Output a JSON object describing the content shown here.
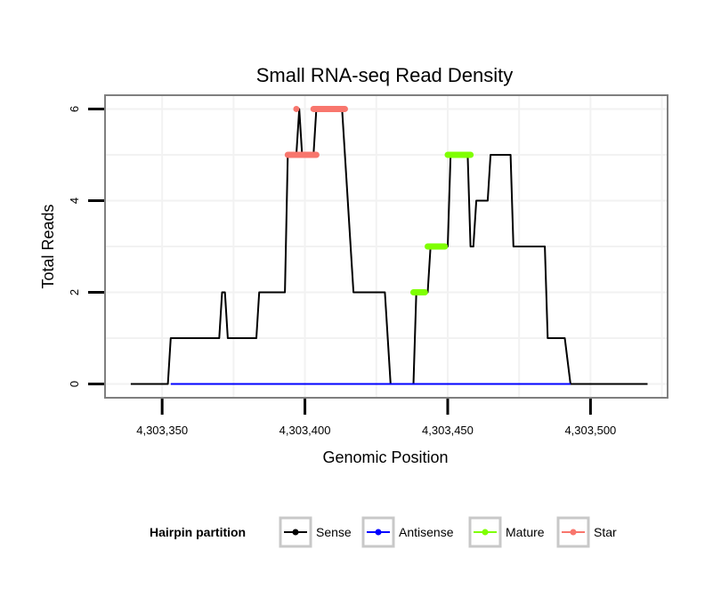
{
  "chart_data": {
    "type": "line",
    "title": "Small RNA-seq Read Density",
    "xlabel": "Genomic Position",
    "ylabel": "Total Reads",
    "xlim": [
      4303330,
      4303527
    ],
    "ylim": [
      -0.3,
      6.3
    ],
    "x_ticks": [
      {
        "value": 4303350,
        "label": "4,303,350"
      },
      {
        "value": 4303400,
        "label": "4,303,400"
      },
      {
        "value": 4303450,
        "label": "4,303,450"
      },
      {
        "value": 4303500,
        "label": "4,303,500"
      }
    ],
    "y_ticks": [
      {
        "value": 0,
        "label": "0"
      },
      {
        "value": 2,
        "label": "2"
      },
      {
        "value": 4,
        "label": "4"
      },
      {
        "value": 6,
        "label": "6"
      }
    ],
    "legend_title": "Hairpin partition",
    "legend_position": "bottom",
    "series": [
      {
        "name": "Sense",
        "color": "#000000",
        "style": "line",
        "x": [
          4303339,
          4303352,
          4303353,
          4303370,
          4303371,
          4303372,
          4303373,
          4303383,
          4303384,
          4303393,
          4303394,
          4303397,
          4303398,
          4303399,
          4303403,
          4303404,
          4303413,
          4303417,
          4303426,
          4303428,
          4303429,
          4303430,
          4303431,
          4303438,
          4303439,
          4303443,
          4303444,
          4303450,
          4303451,
          4303457,
          4303458,
          4303459,
          4303460,
          4303464,
          4303465,
          4303472,
          4303473,
          4303484,
          4303485,
          4303490,
          4303491,
          4303493,
          4303494,
          4303520
        ],
        "y": [
          0,
          0,
          1,
          1,
          2,
          2,
          1,
          1,
          2,
          2,
          5,
          5,
          6,
          5,
          5,
          6,
          6,
          2,
          2,
          2,
          1,
          0,
          0,
          0,
          2,
          2,
          3,
          3,
          5,
          5,
          3,
          3,
          4,
          4,
          5,
          5,
          3,
          3,
          1,
          1,
          1,
          0,
          0,
          0
        ]
      },
      {
        "name": "Antisense",
        "color": "#0000ff",
        "style": "line",
        "x": [
          4303353,
          4303493
        ],
        "y": [
          0,
          0
        ]
      },
      {
        "name": "Mature",
        "color": "#7fff00",
        "style": "segments",
        "segments": [
          {
            "x_start": 4303438,
            "x_end": 4303442,
            "y": 2
          },
          {
            "x_start": 4303443,
            "x_end": 4303449,
            "y": 3
          },
          {
            "x_start": 4303450,
            "x_end": 4303458,
            "y": 5
          }
        ]
      },
      {
        "name": "Star",
        "color": "#f8766d",
        "style": "segments",
        "segments": [
          {
            "x_start": 4303394,
            "x_end": 4303404,
            "y": 5
          },
          {
            "x_start": 4303397,
            "x_end": 4303397,
            "y": 6
          },
          {
            "x_start": 4303403,
            "x_end": 4303414,
            "y": 6
          }
        ]
      }
    ]
  }
}
